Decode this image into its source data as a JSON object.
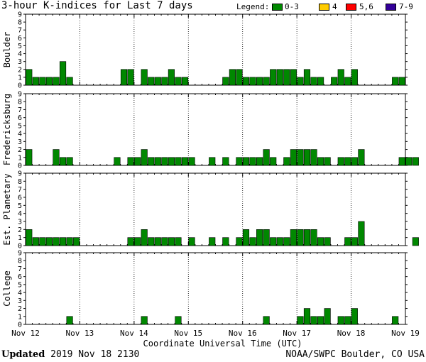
{
  "title": "3-hour K-indices for Last 7 days",
  "legend": {
    "label": "Legend:",
    "items": [
      {
        "label": "0-3",
        "color": "#008800"
      },
      {
        "label": "4",
        "color": "#ffcc00"
      },
      {
        "label": "5,6",
        "color": "#ff0000"
      },
      {
        "label": "7-9",
        "color": "#330099"
      }
    ]
  },
  "footer": {
    "updated_label": "Updated",
    "updated_value": "2019 Nov 18 2130",
    "source": "NOAA/SWPC Boulder, CO USA"
  },
  "chart_data": {
    "type": "bar",
    "xlabel": "Coordinate Universal Time (UTC)",
    "x_ticks": [
      "Nov 12",
      "Nov 13",
      "Nov 14",
      "Nov 15",
      "Nov 16",
      "Nov 17",
      "Nov 18",
      "Nov 19"
    ],
    "ylim": [
      0,
      9
    ],
    "y_ticks": [
      "0",
      "1",
      "2",
      "3",
      "4",
      "5",
      "6",
      "7",
      "8",
      "9"
    ],
    "grid": true,
    "bar_color": "#008800",
    "series": [
      {
        "name": "Boulder",
        "values": [
          2,
          1,
          1,
          1,
          1,
          3,
          1,
          0,
          0,
          0,
          0,
          0,
          0,
          0,
          2,
          2,
          0,
          2,
          1,
          1,
          1,
          2,
          1,
          1,
          0,
          0,
          0,
          0,
          0,
          1,
          2,
          2,
          1,
          1,
          1,
          1,
          2,
          2,
          2,
          2,
          1,
          2,
          1,
          1,
          0,
          1,
          2,
          1,
          2,
          0,
          0,
          0,
          0,
          0,
          1,
          1,
          0,
          0
        ]
      },
      {
        "name": "Fredericksburg",
        "values": [
          2,
          0,
          0,
          0,
          2,
          1,
          1,
          0,
          0,
          0,
          0,
          0,
          0,
          1,
          0,
          1,
          1,
          2,
          1,
          1,
          1,
          1,
          1,
          1,
          1,
          0,
          0,
          1,
          0,
          1,
          0,
          1,
          1,
          1,
          1,
          2,
          1,
          0,
          1,
          2,
          2,
          2,
          2,
          1,
          1,
          0,
          1,
          1,
          1,
          2,
          0,
          0,
          0,
          0,
          0,
          1,
          1,
          1
        ]
      },
      {
        "name": "Est. Planetary",
        "values": [
          2,
          1,
          1,
          1,
          1,
          1,
          1,
          1,
          0,
          0,
          0,
          0,
          0,
          0,
          0,
          1,
          1,
          2,
          1,
          1,
          1,
          1,
          1,
          0,
          1,
          0,
          0,
          1,
          0,
          1,
          0,
          1,
          2,
          1,
          2,
          2,
          1,
          1,
          1,
          2,
          2,
          2,
          2,
          1,
          1,
          0,
          0,
          1,
          1,
          3,
          0,
          0,
          0,
          0,
          0,
          0,
          0,
          1
        ]
      },
      {
        "name": "College",
        "values": [
          0,
          0,
          0,
          0,
          0,
          0,
          1,
          0,
          0,
          0,
          0,
          0,
          0,
          0,
          0,
          0,
          0,
          1,
          0,
          0,
          0,
          0,
          1,
          0,
          0,
          0,
          0,
          0,
          0,
          0,
          0,
          0,
          0,
          0,
          0,
          1,
          0,
          0,
          0,
          0,
          1,
          2,
          1,
          1,
          2,
          0,
          1,
          1,
          2,
          0,
          0,
          0,
          0,
          0,
          1,
          0,
          0,
          0
        ]
      }
    ]
  }
}
